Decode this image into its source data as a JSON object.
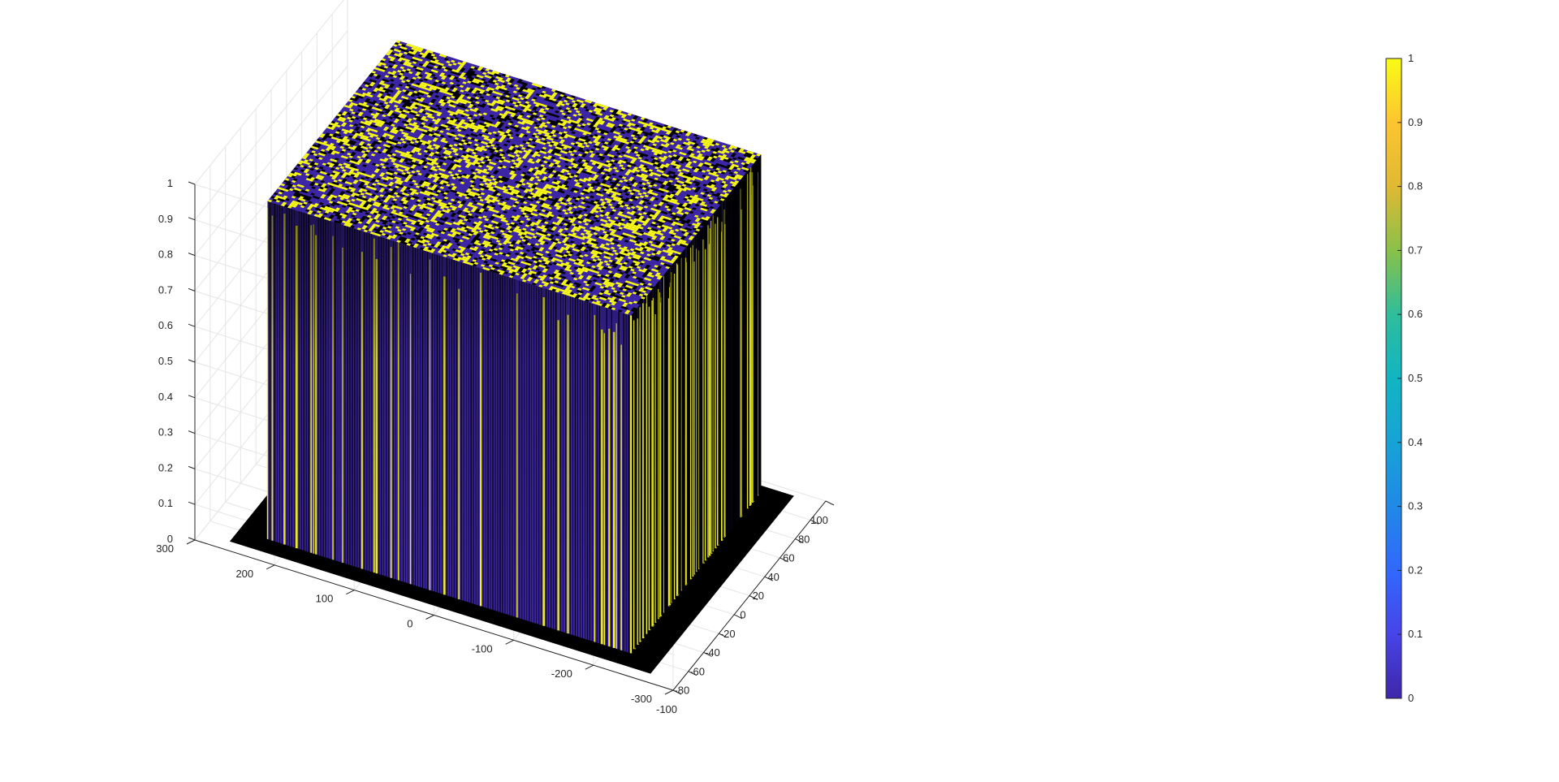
{
  "chart_data": {
    "type": "surface3d",
    "title": "",
    "xlabel": "",
    "ylabel": "",
    "zlabel": "",
    "x_ticks": [
      "-100",
      "-80",
      "-60",
      "-40",
      "-20",
      "0",
      "20",
      "40",
      "60",
      "80",
      "100"
    ],
    "y_ticks": [
      "-300",
      "-200",
      "-100",
      "0",
      "100",
      "200",
      "300"
    ],
    "z_ticks": [
      "0",
      "0.1",
      "0.2",
      "0.3",
      "0.4",
      "0.5",
      "0.6",
      "0.7",
      "0.8",
      "0.9",
      "1"
    ],
    "xlim": [
      -100,
      100
    ],
    "ylim": [
      -300,
      300
    ],
    "zlim": [
      0,
      1
    ],
    "surface": {
      "x_extent": [
        -100,
        100
      ],
      "y_extent": [
        -300,
        300
      ],
      "values": "binary random field: each cell is 0 or 1 (mostly 1 = tall block, 0 = floor)",
      "grid": true
    },
    "colormap": "parula",
    "colorbar": {
      "ticks": [
        "0",
        "0.1",
        "0.2",
        "0.3",
        "0.4",
        "0.5",
        "0.6",
        "0.7",
        "0.8",
        "0.9",
        "1"
      ],
      "range": [
        0,
        1
      ],
      "placement": "right"
    },
    "colors": {
      "low": "#3e26a8",
      "high": "#f9fb15",
      "edge": "#000000",
      "grid": "#e5e5e5",
      "axis": "#262626"
    }
  }
}
